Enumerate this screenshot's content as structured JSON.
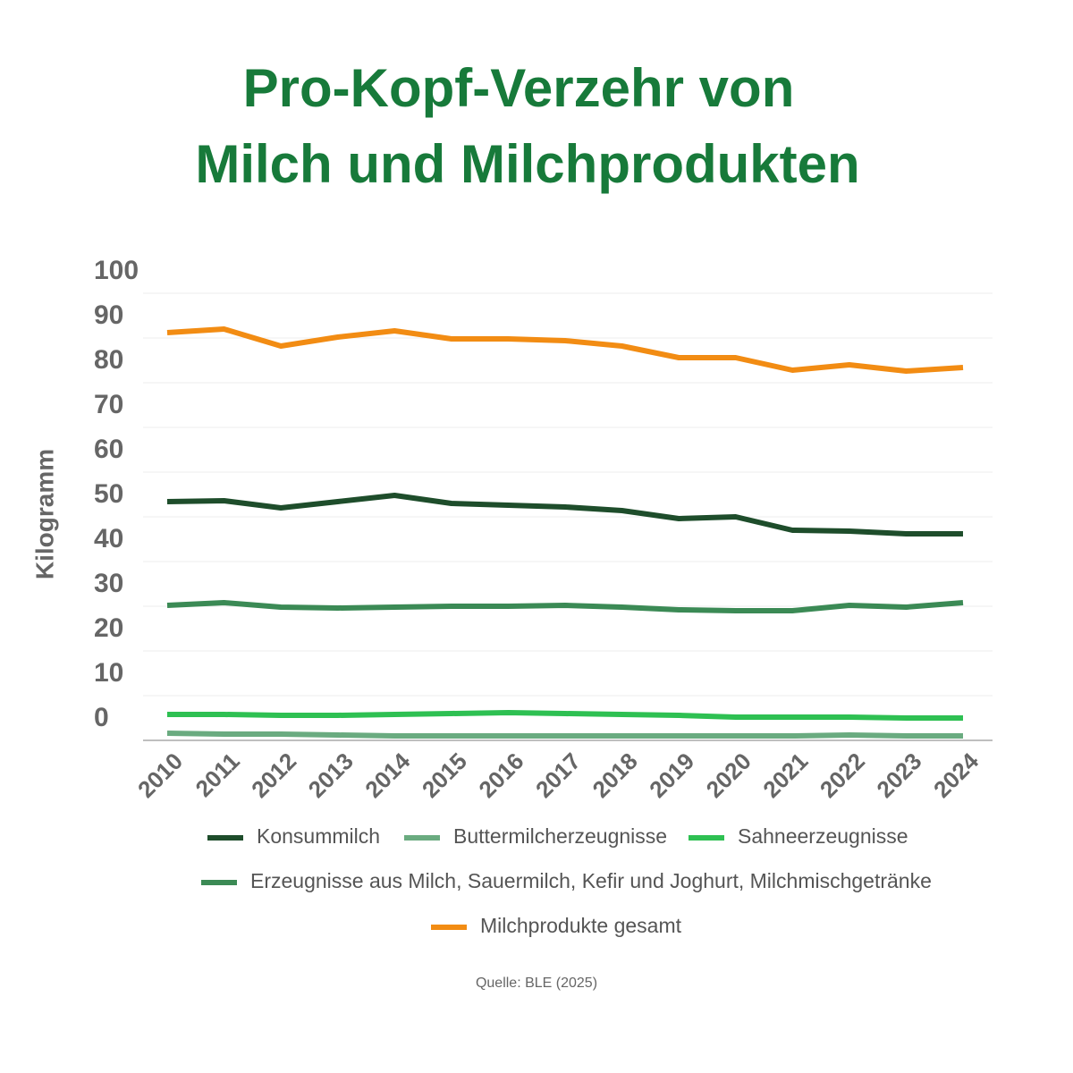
{
  "chart_data": {
    "type": "line",
    "title": [
      "Pro-Kopf-Verzehr von",
      "Milch und Milchprodukten"
    ],
    "y_label": "Kilogramm",
    "source": "Quelle: BLE (2025)",
    "categories": [
      "2010",
      "2011",
      "2012",
      "2013",
      "2014",
      "2015",
      "2016",
      "2017",
      "2018",
      "2019",
      "2020",
      "2021",
      "2022",
      "2023",
      "2024"
    ],
    "ylim": [
      0,
      100
    ],
    "yticks": [
      0,
      10,
      20,
      30,
      40,
      50,
      60,
      70,
      80,
      90,
      100
    ],
    "grid": true,
    "series": [
      {
        "name": "Konsummilch",
        "color": "#1e4d2b",
        "values": [
          53.4,
          53.6,
          52,
          53.4,
          54.8,
          53,
          52.6,
          52.2,
          51.4,
          49.6,
          50,
          47,
          46.8,
          46.2,
          46.2
        ]
      },
      {
        "name": "Buttermilcherzeugnisse",
        "color": "#6aab80",
        "values": [
          1.6,
          1.4,
          1.4,
          1.2,
          1,
          1,
          1,
          1,
          1,
          1,
          1,
          1,
          1.2,
          1,
          1
        ]
      },
      {
        "name": "Sahneerzeugnisse",
        "color": "#2ec052",
        "values": [
          5.8,
          5.8,
          5.6,
          5.6,
          5.8,
          6,
          6.2,
          6,
          5.8,
          5.6,
          5.2,
          5.2,
          5.2,
          5,
          5
        ]
      },
      {
        "name": "Erzeugnisse aus Milch, Sauermilch, Kefir und Joghurt, Milchmischgetränke",
        "color": "#3b8a55",
        "values": [
          30.2,
          30.8,
          29.8,
          29.6,
          29.8,
          30,
          30,
          30.2,
          29.8,
          29.2,
          29,
          29,
          30.2,
          29.8,
          30.8
        ]
      },
      {
        "name": "Milchprodukte gesamt",
        "color": "#f28c13",
        "values": [
          91.2,
          92,
          88.2,
          90.2,
          91.6,
          89.8,
          89.8,
          89.4,
          88.2,
          85.6,
          85.6,
          82.8,
          84,
          82.6,
          83.4
        ]
      }
    ]
  }
}
